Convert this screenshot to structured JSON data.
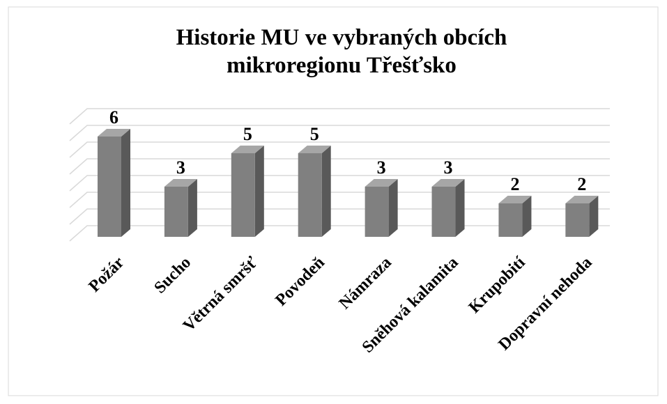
{
  "chart_data": {
    "type": "bar3d",
    "title": [
      "Historie MU ve vybraných obcích",
      "mikroregionu Třešťsko"
    ],
    "categories": [
      "Požár",
      "Sucho",
      "Větrná smršť",
      "Povodeň",
      "Námraza",
      "Sněhová kalamita",
      "Krupobití",
      "Dopravní nehoda"
    ],
    "values": [
      6,
      3,
      5,
      5,
      3,
      3,
      2,
      2
    ],
    "color": "#808080",
    "ylim": [
      0,
      7
    ],
    "yticks": [
      0,
      1,
      2,
      3,
      4,
      5,
      6,
      7
    ],
    "grid": true
  }
}
